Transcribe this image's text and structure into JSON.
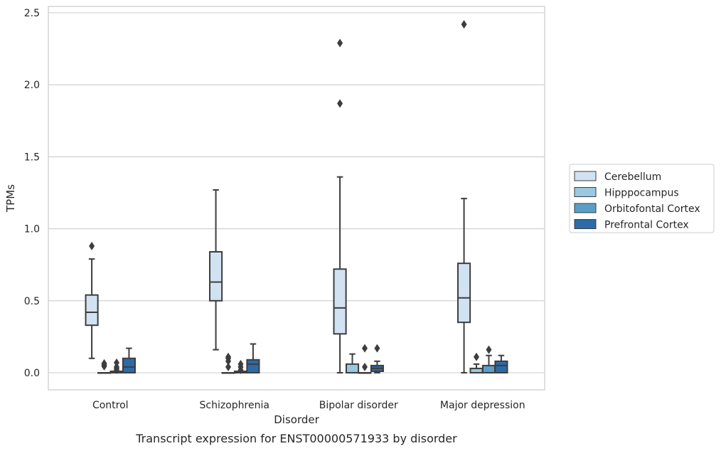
{
  "chart_data": {
    "type": "box",
    "title": "",
    "caption": "Transcript expression for ENST00000571933 by disorder",
    "xlabel": "Disorder",
    "ylabel": "TPMs",
    "ylim": [
      -0.12,
      2.55
    ],
    "yticks": [
      "0.0",
      "0.5",
      "1.0",
      "1.5",
      "2.0",
      "2.5"
    ],
    "grid": "horizontal",
    "legend_position": "right",
    "categories": [
      "Control",
      "Schizophrenia",
      "Bipolar disorder",
      "Major depression"
    ],
    "series": [
      {
        "name": "Cerebellum",
        "color": "#d1e2f2",
        "boxes": [
          {
            "whislo": 0.1,
            "q1": 0.33,
            "med": 0.42,
            "q3": 0.54,
            "whishi": 0.79,
            "fliers": [
              0.88
            ]
          },
          {
            "whislo": 0.16,
            "q1": 0.5,
            "med": 0.63,
            "q3": 0.84,
            "whishi": 1.27,
            "fliers": []
          },
          {
            "whislo": 0.0,
            "q1": 0.27,
            "med": 0.45,
            "q3": 0.72,
            "whishi": 1.36,
            "fliers": [
              1.87,
              2.29
            ]
          },
          {
            "whislo": 0.0,
            "q1": 0.35,
            "med": 0.52,
            "q3": 0.76,
            "whishi": 1.21,
            "fliers": [
              2.42
            ]
          }
        ]
      },
      {
        "name": "Hipppocampus",
        "color": "#9ac8e0",
        "boxes": [
          {
            "whislo": 0.0,
            "q1": 0.0,
            "med": 0.0,
            "q3": 0.0,
            "whishi": 0.0,
            "fliers": [
              0.045,
              0.055,
              0.065
            ]
          },
          {
            "whislo": 0.0,
            "q1": 0.0,
            "med": 0.0,
            "q3": 0.0,
            "whishi": 0.0,
            "fliers": [
              0.04,
              0.08,
              0.1,
              0.11
            ]
          },
          {
            "whislo": 0.0,
            "q1": 0.0,
            "med": 0.0,
            "q3": 0.06,
            "whishi": 0.13,
            "fliers": []
          },
          {
            "whislo": 0.0,
            "q1": 0.0,
            "med": 0.0,
            "q3": 0.03,
            "whishi": 0.06,
            "fliers": [
              0.11
            ]
          }
        ]
      },
      {
        "name": "Orbitofontal Cortex",
        "color": "#5a9ec9",
        "boxes": [
          {
            "whislo": 0.0,
            "q1": 0.0,
            "med": 0.0,
            "q3": 0.01,
            "whishi": 0.01,
            "fliers": [
              0.02,
              0.03,
              0.04,
              0.07
            ]
          },
          {
            "whislo": 0.0,
            "q1": 0.0,
            "med": 0.0,
            "q3": 0.01,
            "whishi": 0.01,
            "fliers": [
              0.02,
              0.04,
              0.06
            ]
          },
          {
            "whislo": 0.0,
            "q1": 0.0,
            "med": 0.0,
            "q3": 0.0,
            "whishi": 0.0,
            "fliers": [
              0.04,
              0.17
            ]
          },
          {
            "whislo": 0.0,
            "q1": 0.0,
            "med": 0.0,
            "q3": 0.05,
            "whishi": 0.12,
            "fliers": [
              0.16
            ]
          }
        ]
      },
      {
        "name": "Prefrontal Cortex",
        "color": "#2c6ba8",
        "boxes": [
          {
            "whislo": 0.0,
            "q1": 0.0,
            "med": 0.04,
            "q3": 0.1,
            "whishi": 0.17,
            "fliers": []
          },
          {
            "whislo": 0.0,
            "q1": 0.0,
            "med": 0.06,
            "q3": 0.09,
            "whishi": 0.2,
            "fliers": []
          },
          {
            "whislo": 0.0,
            "q1": 0.01,
            "med": 0.03,
            "q3": 0.05,
            "whishi": 0.08,
            "fliers": [
              0.17
            ]
          },
          {
            "whislo": 0.0,
            "q1": 0.0,
            "med": 0.05,
            "q3": 0.08,
            "whishi": 0.12,
            "fliers": []
          }
        ]
      }
    ]
  }
}
